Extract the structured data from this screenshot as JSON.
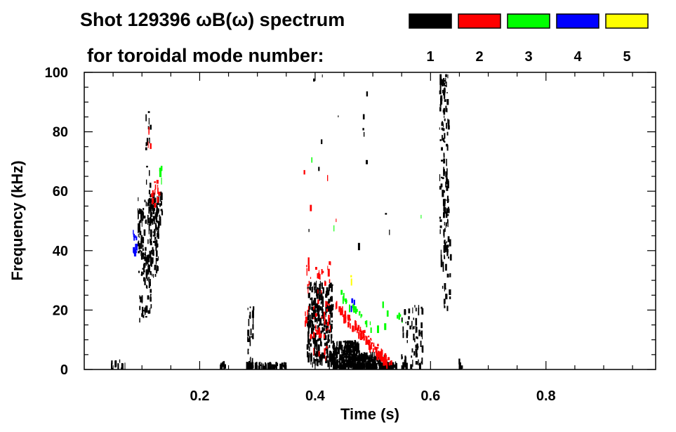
{
  "chart_data": {
    "type": "heatmap",
    "title": "Shot 129396 ωB(ω) spectrum",
    "subtitle": "for toroidal mode number:",
    "xlabel": "Time (s)",
    "ylabel": "Frequency (kHz)",
    "xlim": [
      0,
      0.99
    ],
    "ylim": [
      0,
      100
    ],
    "xticks": [
      0.2,
      0.4,
      0.6,
      0.8
    ],
    "xtick_labels": [
      "0.2",
      "0.4",
      "0.6",
      "0.8"
    ],
    "x_minor_step": 0.05,
    "yticks": [
      0,
      20,
      40,
      60,
      80,
      100
    ],
    "ytick_labels": [
      "0",
      "20",
      "40",
      "60",
      "80",
      "100"
    ],
    "y_minor_step": 5,
    "legend": {
      "placement": "top-right",
      "entries": [
        {
          "mode": "1",
          "color": "#000000"
        },
        {
          "mode": "2",
          "color": "#ff0000"
        },
        {
          "mode": "3",
          "color": "#00ff00"
        },
        {
          "mode": "4",
          "color": "#0000ff"
        },
        {
          "mode": "5",
          "color": "#ffff00"
        }
      ]
    },
    "regions": [
      {
        "kind": "patch",
        "mode": 1,
        "t": [
          0.092,
          0.128
        ],
        "f": [
          30,
          58
        ],
        "density": 160
      },
      {
        "kind": "patch",
        "mode": 1,
        "t": [
          0.095,
          0.115
        ],
        "f": [
          16,
          40
        ],
        "density": 40
      },
      {
        "kind": "patch",
        "mode": 1,
        "t": [
          0.108,
          0.135
        ],
        "f": [
          50,
          60
        ],
        "density": 50
      },
      {
        "kind": "patch",
        "mode": 1,
        "t": [
          0.105,
          0.115
        ],
        "f": [
          60,
          88
        ],
        "density": 15
      },
      {
        "kind": "patch",
        "mode": 4,
        "t": [
          0.083,
          0.09
        ],
        "f": [
          38,
          50
        ],
        "density": 12
      },
      {
        "kind": "patch",
        "mode": 2,
        "t": [
          0.115,
          0.13
        ],
        "f": [
          55,
          64
        ],
        "density": 14
      },
      {
        "kind": "patch",
        "mode": 2,
        "t": [
          0.11,
          0.115
        ],
        "f": [
          74,
          82
        ],
        "density": 4
      },
      {
        "kind": "patch",
        "mode": 3,
        "t": [
          0.128,
          0.134
        ],
        "f": [
          64,
          69
        ],
        "density": 4
      },
      {
        "kind": "patch",
        "mode": 1,
        "t": [
          0.045,
          0.07
        ],
        "f": [
          0,
          4
        ],
        "density": 15
      },
      {
        "kind": "patch",
        "mode": 1,
        "t": [
          0.235,
          0.245
        ],
        "f": [
          0,
          3
        ],
        "density": 10
      },
      {
        "kind": "patch",
        "mode": 1,
        "t": [
          0.28,
          0.35
        ],
        "f": [
          0,
          2.5
        ],
        "density": 60
      },
      {
        "kind": "patch",
        "mode": 1,
        "t": [
          0.282,
          0.292
        ],
        "f": [
          0,
          22
        ],
        "density": 30
      },
      {
        "kind": "patch",
        "mode": 1,
        "t": [
          0.385,
          0.43
        ],
        "f": [
          2,
          30
        ],
        "density": 300
      },
      {
        "kind": "patch",
        "mode": 2,
        "t": [
          0.38,
          0.43
        ],
        "f": [
          4,
          40
        ],
        "density": 60
      },
      {
        "kind": "patch",
        "mode": 1,
        "t": [
          0.43,
          0.475
        ],
        "f": [
          0,
          10
        ],
        "density": 260
      },
      {
        "kind": "patch",
        "mode": 1,
        "t": [
          0.475,
          0.52
        ],
        "f": [
          0,
          6
        ],
        "density": 160
      },
      {
        "kind": "patch",
        "mode": 1,
        "t": [
          0.52,
          0.54
        ],
        "f": [
          0,
          3
        ],
        "density": 40
      },
      {
        "kind": "chirp",
        "mode": 2,
        "t0": 0.435,
        "f0": 22,
        "t1": 0.53,
        "f1": 2,
        "spread": 3,
        "density": 110
      },
      {
        "kind": "chirp",
        "mode": 3,
        "t0": 0.445,
        "f0": 26,
        "t1": 0.5,
        "f1": 14,
        "spread": 2,
        "density": 25
      },
      {
        "kind": "patch",
        "mode": 3,
        "t": [
          0.49,
          0.56
        ],
        "f": [
          14,
          26
        ],
        "density": 8
      },
      {
        "kind": "patch",
        "mode": 4,
        "t": [
          0.455,
          0.47
        ],
        "f": [
          20,
          25
        ],
        "density": 3
      },
      {
        "kind": "patch",
        "mode": 5,
        "t": [
          0.46,
          0.465
        ],
        "f": [
          29,
          32
        ],
        "density": 2
      },
      {
        "kind": "patch",
        "mode": 1,
        "t": [
          0.548,
          0.585
        ],
        "f": [
          0,
          22
        ],
        "density": 70
      },
      {
        "kind": "patch",
        "mode": 1,
        "t": [
          0.615,
          0.63
        ],
        "f": [
          35,
          100
        ],
        "density": 120
      },
      {
        "kind": "patch",
        "mode": 1,
        "t": [
          0.62,
          0.635
        ],
        "f": [
          20,
          45
        ],
        "density": 25
      },
      {
        "kind": "patch",
        "mode": 1,
        "t": [
          0.645,
          0.655
        ],
        "f": [
          1,
          4
        ],
        "density": 6
      },
      {
        "kind": "patch",
        "mode": 1,
        "t": [
          0.37,
          0.53
        ],
        "f": [
          30,
          100
        ],
        "density": 14
      },
      {
        "kind": "patch",
        "mode": 2,
        "t": [
          0.38,
          0.44
        ],
        "f": [
          45,
          70
        ],
        "density": 4
      },
      {
        "kind": "patch",
        "mode": 3,
        "t": [
          0.37,
          0.61
        ],
        "f": [
          42,
          96
        ],
        "density": 3
      }
    ]
  }
}
